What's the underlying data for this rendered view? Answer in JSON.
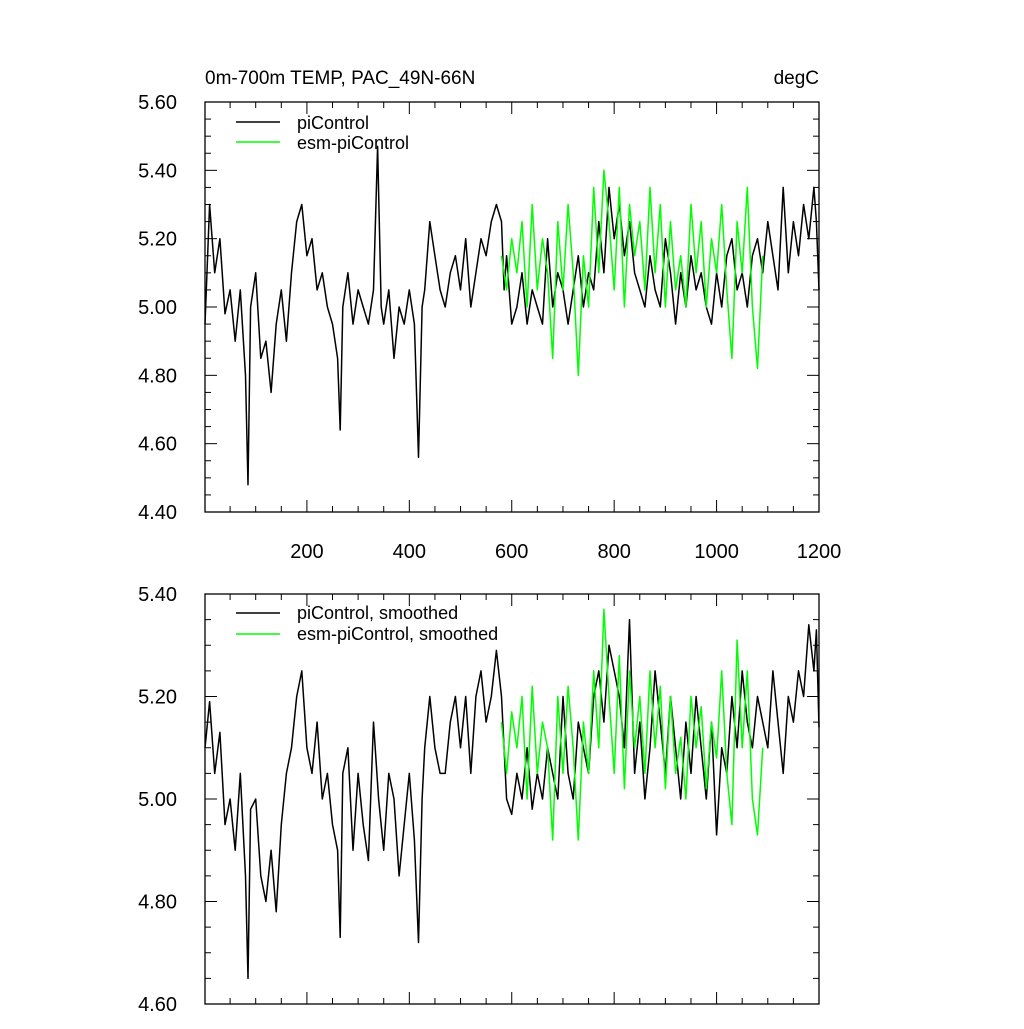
{
  "chart_data": [
    {
      "type": "line",
      "title": "0m-700m TEMP, PAC_49N-66N",
      "title_right": "degC",
      "xlim": [
        1,
        1200
      ],
      "ylim": [
        4.4,
        5.6
      ],
      "x_ticks": [
        200,
        400,
        600,
        800,
        1000,
        1200
      ],
      "x_tick_labels": [
        "200",
        "400",
        "600",
        "800",
        "1000",
        "1200"
      ],
      "y_ticks": [
        4.4,
        4.6,
        4.8,
        5.0,
        5.2,
        5.4,
        5.6
      ],
      "y_tick_labels": [
        "4.40",
        "4.60",
        "4.80",
        "5.00",
        "5.20",
        "5.40",
        "5.60"
      ],
      "grid": false,
      "legend_position": "top-left",
      "series": [
        {
          "name": "piControl",
          "color": "#000000",
          "x": [
            1,
            10,
            20,
            30,
            40,
            50,
            60,
            70,
            80,
            85,
            90,
            100,
            110,
            120,
            130,
            140,
            150,
            160,
            170,
            180,
            190,
            200,
            210,
            220,
            230,
            240,
            250,
            260,
            265,
            270,
            280,
            290,
            300,
            310,
            320,
            330,
            338,
            345,
            350,
            360,
            370,
            380,
            390,
            400,
            410,
            418,
            425,
            430,
            440,
            450,
            460,
            470,
            480,
            490,
            500,
            510,
            520,
            530,
            540,
            550,
            560,
            570,
            580,
            585,
            590,
            600,
            610,
            620,
            630,
            640,
            650,
            660,
            670,
            680,
            690,
            700,
            710,
            720,
            730,
            740,
            750,
            760,
            770,
            780,
            790,
            800,
            810,
            820,
            830,
            840,
            850,
            860,
            870,
            880,
            890,
            900,
            910,
            920,
            930,
            940,
            950,
            960,
            970,
            980,
            990,
            1000,
            1010,
            1020,
            1030,
            1040,
            1050,
            1060,
            1070,
            1080,
            1090,
            1100,
            1110,
            1120,
            1130,
            1140,
            1150,
            1160,
            1170,
            1180,
            1190,
            1195,
            1200
          ],
          "y": [
            4.95,
            5.3,
            5.1,
            5.2,
            4.98,
            5.05,
            4.9,
            5.05,
            4.8,
            4.48,
            5.0,
            5.1,
            4.85,
            4.9,
            4.75,
            4.95,
            5.05,
            4.9,
            5.1,
            5.25,
            5.3,
            5.15,
            5.2,
            5.05,
            5.1,
            5.0,
            4.95,
            4.85,
            4.64,
            5.0,
            5.1,
            4.95,
            5.05,
            5.0,
            4.95,
            5.05,
            5.47,
            5.0,
            4.95,
            5.05,
            4.85,
            5.0,
            4.95,
            5.05,
            4.95,
            4.56,
            5.0,
            5.05,
            5.25,
            5.15,
            5.05,
            5.0,
            5.1,
            5.15,
            5.05,
            5.2,
            5.0,
            5.1,
            5.2,
            5.15,
            5.25,
            5.3,
            5.25,
            5.05,
            5.15,
            4.95,
            5.0,
            5.1,
            4.95,
            5.05,
            5.0,
            4.95,
            5.2,
            5.0,
            5.1,
            5.05,
            4.95,
            5.05,
            5.15,
            5.0,
            5.1,
            5.05,
            5.25,
            5.1,
            5.35,
            5.2,
            5.3,
            5.15,
            5.25,
            5.1,
            5.05,
            5.0,
            5.15,
            5.05,
            5.0,
            5.2,
            5.1,
            4.95,
            5.1,
            5.0,
            5.15,
            5.05,
            5.1,
            5.0,
            4.95,
            5.1,
            5.0,
            5.15,
            5.2,
            5.05,
            5.1,
            5.0,
            5.15,
            5.2,
            5.1,
            5.25,
            5.15,
            5.05,
            5.35,
            5.1,
            5.25,
            5.15,
            5.3,
            5.2,
            5.35,
            5.25,
            5.05
          ]
        },
        {
          "name": "esm-piControl",
          "color": "#00ff00",
          "x": [
            580,
            590,
            600,
            610,
            620,
            630,
            640,
            650,
            660,
            670,
            680,
            690,
            700,
            710,
            720,
            730,
            740,
            750,
            760,
            770,
            780,
            790,
            800,
            810,
            820,
            830,
            840,
            850,
            860,
            870,
            880,
            890,
            900,
            910,
            920,
            930,
            940,
            950,
            960,
            970,
            980,
            990,
            1000,
            1010,
            1020,
            1030,
            1040,
            1050,
            1060,
            1070,
            1080,
            1090
          ],
          "y": [
            5.15,
            5.05,
            5.2,
            5.1,
            5.25,
            5.0,
            5.3,
            5.05,
            5.2,
            5.1,
            4.85,
            5.25,
            5.05,
            5.3,
            5.1,
            4.8,
            5.15,
            5.0,
            5.35,
            5.1,
            5.4,
            5.25,
            5.05,
            5.35,
            5.0,
            5.3,
            5.15,
            5.25,
            5.05,
            5.35,
            5.1,
            5.3,
            5.0,
            5.25,
            5.05,
            5.15,
            5.0,
            5.3,
            5.1,
            5.25,
            5.0,
            5.2,
            5.1,
            5.3,
            5.05,
            4.85,
            5.25,
            5.1,
            5.35,
            5.0,
            4.82,
            5.15
          ]
        }
      ]
    },
    {
      "type": "line",
      "title": "",
      "xlim": [
        1,
        1200
      ],
      "ylim": [
        4.6,
        5.4
      ],
      "x_ticks": [
        200,
        400,
        600,
        800,
        1000,
        1200
      ],
      "y_ticks": [
        4.6,
        4.8,
        5.0,
        5.2,
        5.4
      ],
      "y_tick_labels": [
        "4.60",
        "4.80",
        "5.00",
        "5.20",
        "5.40"
      ],
      "grid": false,
      "legend_position": "top-left",
      "series": [
        {
          "name": "piControl, smoothed",
          "color": "#000000",
          "x": [
            1,
            10,
            20,
            30,
            40,
            50,
            60,
            70,
            80,
            85,
            90,
            100,
            110,
            120,
            130,
            140,
            150,
            160,
            170,
            180,
            190,
            200,
            210,
            220,
            230,
            240,
            250,
            260,
            265,
            270,
            280,
            290,
            300,
            310,
            320,
            330,
            340,
            350,
            360,
            370,
            380,
            390,
            400,
            410,
            418,
            425,
            430,
            440,
            450,
            460,
            470,
            480,
            490,
            500,
            510,
            520,
            530,
            540,
            550,
            560,
            570,
            580,
            590,
            600,
            610,
            620,
            630,
            640,
            650,
            660,
            670,
            680,
            690,
            700,
            710,
            720,
            730,
            740,
            750,
            760,
            770,
            780,
            790,
            800,
            810,
            820,
            830,
            840,
            850,
            860,
            870,
            880,
            890,
            900,
            910,
            920,
            930,
            940,
            950,
            960,
            970,
            980,
            990,
            1000,
            1010,
            1020,
            1030,
            1040,
            1050,
            1060,
            1070,
            1080,
            1090,
            1100,
            1110,
            1120,
            1130,
            1140,
            1150,
            1160,
            1170,
            1180,
            1190,
            1195,
            1200
          ],
          "y": [
            5.1,
            5.19,
            5.05,
            5.13,
            4.95,
            5.0,
            4.9,
            5.05,
            4.85,
            4.65,
            4.98,
            5.0,
            4.85,
            4.8,
            4.9,
            4.78,
            4.95,
            5.05,
            5.1,
            5.2,
            5.25,
            5.1,
            5.05,
            5.15,
            5.0,
            5.05,
            4.95,
            4.9,
            4.73,
            5.05,
            5.1,
            4.9,
            5.05,
            4.95,
            4.88,
            5.15,
            5.0,
            4.9,
            5.05,
            5.0,
            4.85,
            4.95,
            5.05,
            4.92,
            4.72,
            5.0,
            5.1,
            5.2,
            5.1,
            5.05,
            5.05,
            5.15,
            5.2,
            5.1,
            5.2,
            5.05,
            5.2,
            5.25,
            5.15,
            5.2,
            5.29,
            5.2,
            5.0,
            4.97,
            5.05,
            5.0,
            5.1,
            4.98,
            5.05,
            5.0,
            5.1,
            5.05,
            5.0,
            5.2,
            5.05,
            5.0,
            5.15,
            5.1,
            5.05,
            5.2,
            5.25,
            5.15,
            5.3,
            5.25,
            5.2,
            5.1,
            5.35,
            5.05,
            5.15,
            5.0,
            5.1,
            5.25,
            5.15,
            5.05,
            5.2,
            5.1,
            5.0,
            5.15,
            5.05,
            5.2,
            5.1,
            5.0,
            5.15,
            4.93,
            5.1,
            5.05,
            5.2,
            5.1,
            5.25,
            5.15,
            5.1,
            5.2,
            5.15,
            5.1,
            5.25,
            5.15,
            5.05,
            5.2,
            5.15,
            5.25,
            5.2,
            5.34,
            5.25,
            5.33,
            5.14
          ]
        },
        {
          "name": "esm-piControl, smoothed",
          "color": "#00ff00",
          "x": [
            580,
            590,
            600,
            610,
            620,
            630,
            640,
            650,
            660,
            670,
            680,
            690,
            700,
            710,
            720,
            730,
            740,
            750,
            760,
            770,
            780,
            790,
            800,
            810,
            820,
            830,
            840,
            850,
            860,
            870,
            880,
            890,
            900,
            910,
            920,
            930,
            940,
            950,
            960,
            970,
            980,
            990,
            1000,
            1010,
            1020,
            1030,
            1040,
            1050,
            1060,
            1070,
            1080,
            1090
          ],
          "y": [
            5.15,
            5.05,
            5.17,
            5.1,
            5.2,
            5.0,
            5.22,
            5.05,
            5.15,
            5.1,
            4.92,
            5.2,
            5.05,
            5.22,
            5.1,
            4.92,
            5.15,
            5.05,
            5.25,
            5.1,
            5.37,
            5.2,
            5.05,
            5.28,
            5.02,
            5.25,
            5.1,
            5.2,
            5.05,
            5.25,
            5.1,
            5.22,
            5.02,
            5.2,
            5.05,
            5.12,
            5.0,
            5.2,
            5.1,
            5.18,
            5.02,
            5.15,
            5.08,
            5.25,
            5.05,
            4.95,
            5.31,
            5.1,
            5.25,
            5.0,
            4.93,
            5.1
          ]
        }
      ]
    }
  ]
}
